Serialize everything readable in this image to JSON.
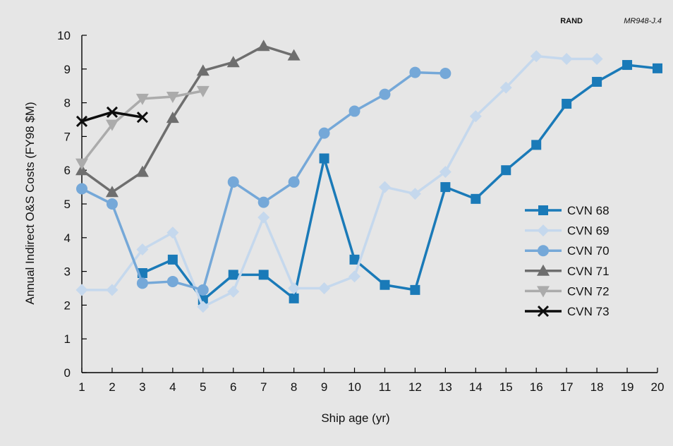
{
  "source": {
    "org": "RAND",
    "code": "MR948-J.4"
  },
  "chart_data": {
    "type": "line",
    "title": "",
    "xlabel": "Ship age (yr)",
    "ylabel": "Annual Indirect O&S Costs (FY98 $M)",
    "xlim": [
      1,
      20
    ],
    "ylim": [
      0,
      10
    ],
    "x_ticks": [
      1,
      2,
      3,
      4,
      5,
      6,
      7,
      8,
      9,
      10,
      11,
      12,
      13,
      14,
      15,
      16,
      17,
      18,
      19,
      20
    ],
    "y_ticks": [
      0,
      1,
      2,
      3,
      4,
      5,
      6,
      7,
      8,
      9,
      10
    ],
    "grid": false,
    "legend_position": "right",
    "series": [
      {
        "name": "CVN 68",
        "marker": "square",
        "color": "#1a7ab8",
        "x": [
          3,
          4,
          5,
          6,
          7,
          8,
          9,
          10,
          11,
          12,
          13,
          14,
          15,
          16,
          17,
          18,
          19,
          20
        ],
        "y": [
          2.95,
          3.35,
          2.15,
          2.9,
          2.9,
          2.2,
          6.35,
          3.35,
          2.6,
          2.45,
          5.5,
          5.15,
          6.0,
          6.75,
          7.97,
          8.62,
          9.12,
          9.02
        ]
      },
      {
        "name": "CVN 69",
        "marker": "diamond",
        "color": "#c5d8ed",
        "x": [
          1,
          2,
          3,
          4,
          5,
          6,
          7,
          8,
          9,
          10,
          11,
          12,
          13,
          14,
          15,
          16,
          17,
          18
        ],
        "y": [
          2.45,
          2.45,
          3.65,
          4.15,
          1.95,
          2.4,
          4.6,
          2.5,
          2.5,
          2.85,
          5.5,
          5.3,
          5.95,
          7.6,
          8.45,
          9.38,
          9.3,
          9.3
        ]
      },
      {
        "name": "CVN 70",
        "marker": "circle",
        "color": "#75a8d8",
        "x": [
          1,
          2,
          3,
          4,
          5,
          6,
          7,
          8,
          9,
          10,
          11,
          12,
          13
        ],
        "y": [
          5.45,
          5.0,
          2.65,
          2.7,
          2.45,
          5.65,
          5.05,
          5.65,
          7.1,
          7.75,
          8.25,
          8.9,
          8.87
        ]
      },
      {
        "name": "CVN 71",
        "marker": "triangle-up",
        "color": "#6e6e6e",
        "x": [
          1,
          2,
          3,
          4,
          5,
          6,
          7,
          8
        ],
        "y": [
          6.0,
          5.35,
          5.95,
          7.55,
          8.95,
          9.2,
          9.68,
          9.4
        ]
      },
      {
        "name": "CVN 72",
        "marker": "triangle-down",
        "color": "#ababab",
        "x": [
          1,
          2,
          3,
          4,
          5
        ],
        "y": [
          6.2,
          7.35,
          8.12,
          8.18,
          8.35
        ]
      },
      {
        "name": "CVN 73",
        "marker": "x",
        "color": "#0d0d0d",
        "x": [
          1,
          2,
          3
        ],
        "y": [
          7.45,
          7.72,
          7.57
        ]
      }
    ]
  }
}
